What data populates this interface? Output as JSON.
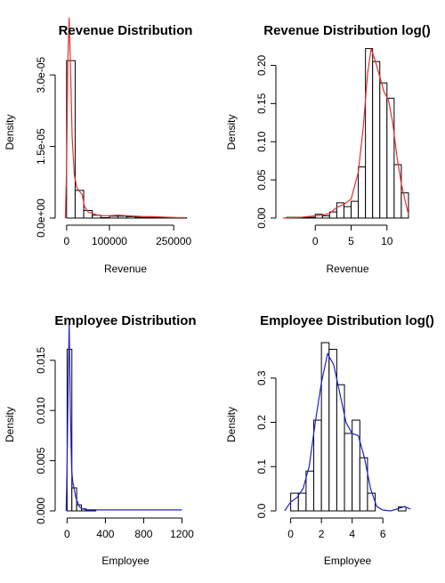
{
  "chart_data": [
    {
      "type": "histogram",
      "title": "Revenue Distribution",
      "xlabel": "Revenue",
      "ylabel": "Density",
      "xlim": [
        -10000,
        285000
      ],
      "ylim": [
        0,
        3.6e-05
      ],
      "xticks": [
        0,
        100000,
        250000
      ],
      "xtick_labels": [
        "0",
        "100000",
        "250000"
      ],
      "yticks": [
        0,
        1.5e-05,
        3e-05
      ],
      "ytick_labels": [
        "0.0e+00",
        "1.5e-05",
        "3.0e-05"
      ],
      "bars": [
        {
          "x0": 0,
          "x1": 20000,
          "value": 3.3e-05
        },
        {
          "x0": 20000,
          "x1": 40000,
          "value": 5.8e-06
        },
        {
          "x0": 40000,
          "x1": 60000,
          "value": 1.6e-06
        },
        {
          "x0": 60000,
          "x1": 80000,
          "value": 6e-07
        },
        {
          "x0": 80000,
          "x1": 100000,
          "value": 1e-07
        },
        {
          "x0": 100000,
          "x1": 120000,
          "value": 4e-07
        },
        {
          "x0": 120000,
          "x1": 140000,
          "value": 4e-07
        },
        {
          "x0": 140000,
          "x1": 160000,
          "value": 3e-07
        },
        {
          "x0": 160000,
          "x1": 180000,
          "value": 2e-07
        },
        {
          "x0": 180000,
          "x1": 200000,
          "value": 2e-07
        },
        {
          "x0": 200000,
          "x1": 220000,
          "value": 2e-07
        },
        {
          "x0": 220000,
          "x1": 240000,
          "value": 1e-07
        },
        {
          "x0": 240000,
          "x1": 260000,
          "value": 1e-07
        },
        {
          "x0": 260000,
          "x1": 280000,
          "value": 1e-07
        }
      ],
      "density_color": "#e03030",
      "density": [
        [
          -3000,
          0
        ],
        [
          0,
          1e-05
        ],
        [
          3000,
          3.3e-05
        ],
        [
          6000,
          4.2e-05
        ],
        [
          9000,
          3.2e-05
        ],
        [
          13000,
          1.7e-05
        ],
        [
          18000,
          9e-06
        ],
        [
          24000,
          6.4e-06
        ],
        [
          30000,
          5.6e-06
        ],
        [
          36000,
          5e-06
        ],
        [
          42000,
          2.4e-06
        ],
        [
          50000,
          1.3e-06
        ],
        [
          60000,
          1e-06
        ],
        [
          70000,
          7e-07
        ],
        [
          80000,
          5e-07
        ],
        [
          100000,
          5e-07
        ],
        [
          120000,
          6e-07
        ],
        [
          140000,
          5e-07
        ],
        [
          160000,
          4e-07
        ],
        [
          180000,
          3e-07
        ],
        [
          200000,
          3e-07
        ],
        [
          230000,
          2e-07
        ],
        [
          260000,
          1e-07
        ],
        [
          280000,
          1e-07
        ]
      ]
    },
    {
      "type": "histogram",
      "title": "Revenue Distribution log()",
      "xlabel": "Revenue",
      "ylabel": "Density",
      "xlim": [
        -4.5,
        13.5
      ],
      "ylim": [
        0,
        0.225
      ],
      "xticks": [
        0,
        5,
        10
      ],
      "xtick_labels": [
        "0",
        "5",
        "10"
      ],
      "yticks": [
        0,
        0.05,
        0.1,
        0.15,
        0.2
      ],
      "ytick_labels": [
        "0.00",
        "0.05",
        "0.10",
        "0.15",
        "0.20"
      ],
      "bars": [
        {
          "x0": -4,
          "x1": -3,
          "value": 0.001
        },
        {
          "x0": -3,
          "x1": -2,
          "value": 0.001
        },
        {
          "x0": -2,
          "x1": -1,
          "value": 0.001
        },
        {
          "x0": -1,
          "x1": 0,
          "value": 0.001
        },
        {
          "x0": 0,
          "x1": 1,
          "value": 0.005
        },
        {
          "x0": 1,
          "x1": 2,
          "value": 0.003
        },
        {
          "x0": 2,
          "x1": 3,
          "value": 0.008
        },
        {
          "x0": 3,
          "x1": 4,
          "value": 0.02
        },
        {
          "x0": 4,
          "x1": 5,
          "value": 0.015
        },
        {
          "x0": 5,
          "x1": 6,
          "value": 0.022
        },
        {
          "x0": 6,
          "x1": 7,
          "value": 0.067
        },
        {
          "x0": 7,
          "x1": 8,
          "value": 0.222
        },
        {
          "x0": 8,
          "x1": 9,
          "value": 0.205
        },
        {
          "x0": 9,
          "x1": 10,
          "value": 0.177
        },
        {
          "x0": 10,
          "x1": 11,
          "value": 0.157
        },
        {
          "x0": 11,
          "x1": 12,
          "value": 0.07
        },
        {
          "x0": 12,
          "x1": 13,
          "value": 0.033
        }
      ],
      "density_color": "#e03030",
      "density": [
        [
          -4.5,
          0
        ],
        [
          -2,
          0.001
        ],
        [
          0,
          0.003
        ],
        [
          1,
          0.004
        ],
        [
          2,
          0.006
        ],
        [
          3,
          0.014
        ],
        [
          4,
          0.018
        ],
        [
          5,
          0.025
        ],
        [
          6,
          0.06
        ],
        [
          6.7,
          0.12
        ],
        [
          7.3,
          0.19
        ],
        [
          7.8,
          0.222
        ],
        [
          8.4,
          0.205
        ],
        [
          9,
          0.185
        ],
        [
          9.6,
          0.165
        ],
        [
          10.2,
          0.155
        ],
        [
          10.8,
          0.125
        ],
        [
          11.4,
          0.08
        ],
        [
          12,
          0.045
        ],
        [
          12.6,
          0.02
        ],
        [
          13,
          0.005
        ]
      ]
    },
    {
      "type": "histogram",
      "title": "Employee Distribution",
      "xlabel": "Employee",
      "ylabel": "Density",
      "xlim": [
        -50,
        1270
      ],
      "ylim": [
        0,
        0.0172
      ],
      "xticks": [
        0,
        400,
        800,
        1200
      ],
      "xtick_labels": [
        "0",
        "400",
        "800",
        "1200"
      ],
      "yticks": [
        0,
        0.005,
        0.01,
        0.015
      ],
      "ytick_labels": [
        "0.000",
        "0.005",
        "0.010",
        "0.015"
      ],
      "bars": [
        {
          "x0": 0,
          "x1": 50,
          "value": 0.0161
        },
        {
          "x0": 50,
          "x1": 100,
          "value": 0.0023
        },
        {
          "x0": 100,
          "x1": 150,
          "value": 0.0006
        },
        {
          "x0": 150,
          "x1": 200,
          "value": 0.0002
        },
        {
          "x0": 200,
          "x1": 250,
          "value": 0.0001
        },
        {
          "x0": 250,
          "x1": 300,
          "value": 0.0001
        }
      ],
      "density_color": "#2222cc",
      "density": [
        [
          -10,
          0
        ],
        [
          0,
          0.0045
        ],
        [
          12,
          0.013
        ],
        [
          22,
          0.0188
        ],
        [
          34,
          0.01
        ],
        [
          48,
          0.004
        ],
        [
          62,
          0.0027
        ],
        [
          76,
          0.0021
        ],
        [
          92,
          0.0013
        ],
        [
          108,
          0.0009
        ],
        [
          130,
          0.0004
        ],
        [
          160,
          0.0002
        ],
        [
          200,
          0.0001
        ],
        [
          300,
          0.0001
        ],
        [
          600,
          0.0001
        ],
        [
          900,
          0.0001
        ],
        [
          1200,
          0.0001
        ]
      ]
    },
    {
      "type": "histogram",
      "title": "Employee Distribution log()",
      "xlabel": "Employee",
      "ylabel": "Density",
      "xlim": [
        -0.5,
        7.9
      ],
      "ylim": [
        0,
        0.39
      ],
      "xticks": [
        0,
        2,
        4,
        6
      ],
      "xtick_labels": [
        "0",
        "2",
        "4",
        "6"
      ],
      "yticks": [
        0,
        0.1,
        0.2,
        0.3
      ],
      "ytick_labels": [
        "0.0",
        "0.1",
        "0.2",
        "0.3"
      ],
      "bars": [
        {
          "x0": 0,
          "x1": 0.5,
          "value": 0.04
        },
        {
          "x0": 0.5,
          "x1": 1,
          "value": 0.04
        },
        {
          "x0": 1,
          "x1": 1.5,
          "value": 0.09
        },
        {
          "x0": 1.5,
          "x1": 2,
          "value": 0.205
        },
        {
          "x0": 2,
          "x1": 2.5,
          "value": 0.38
        },
        {
          "x0": 2.5,
          "x1": 3,
          "value": 0.365
        },
        {
          "x0": 3,
          "x1": 3.5,
          "value": 0.285
        },
        {
          "x0": 3.5,
          "x1": 4,
          "value": 0.175
        },
        {
          "x0": 4,
          "x1": 4.5,
          "value": 0.205
        },
        {
          "x0": 4.5,
          "x1": 5,
          "value": 0.12
        },
        {
          "x0": 5,
          "x1": 5.5,
          "value": 0.04
        },
        {
          "x0": 7,
          "x1": 7.5,
          "value": 0.009
        }
      ],
      "density_color": "#2222cc",
      "density": [
        [
          -0.4,
          0
        ],
        [
          0,
          0.02
        ],
        [
          0.4,
          0.03
        ],
        [
          0.8,
          0.05
        ],
        [
          1.2,
          0.1
        ],
        [
          1.6,
          0.2
        ],
        [
          2,
          0.29
        ],
        [
          2.4,
          0.355
        ],
        [
          2.8,
          0.33
        ],
        [
          3.2,
          0.265
        ],
        [
          3.6,
          0.2
        ],
        [
          4,
          0.175
        ],
        [
          4.4,
          0.17
        ],
        [
          4.8,
          0.12
        ],
        [
          5.2,
          0.05
        ],
        [
          5.6,
          0.01
        ],
        [
          6,
          0.002
        ],
        [
          6.5,
          0
        ],
        [
          7,
          0.005
        ],
        [
          7.4,
          0.01
        ],
        [
          7.8,
          0.004
        ]
      ]
    }
  ]
}
